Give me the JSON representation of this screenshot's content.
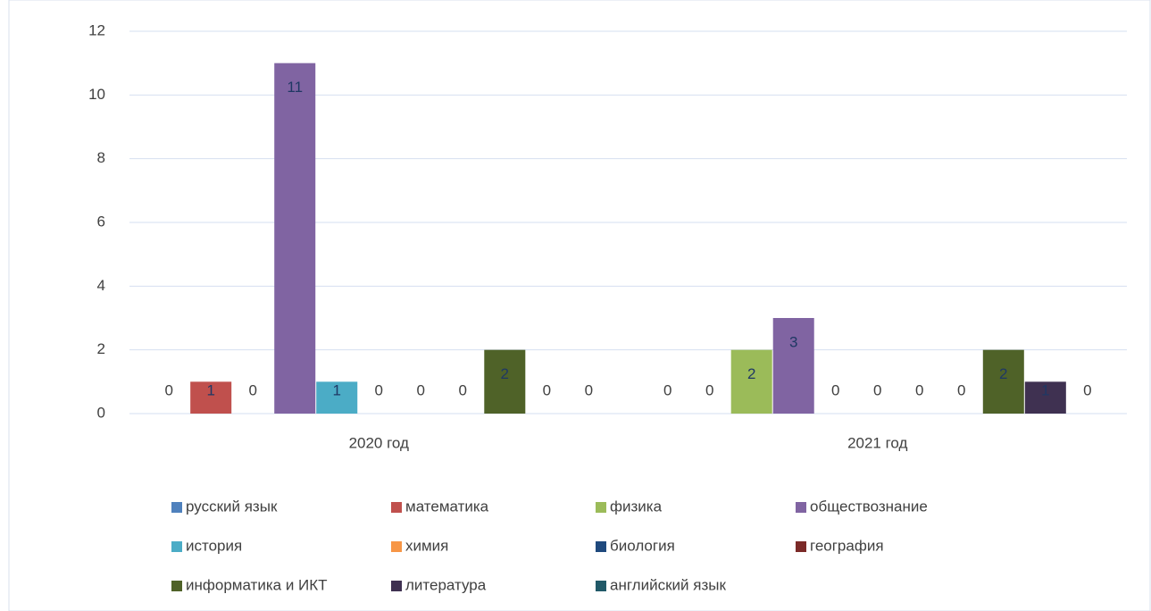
{
  "chart_data": {
    "type": "bar",
    "categories": [
      "2020 год",
      "2021 год"
    ],
    "series": [
      {
        "name": "русский язык",
        "color": "#4f81bd",
        "values": [
          0,
          0
        ]
      },
      {
        "name": "математика",
        "color": "#c0504d",
        "values": [
          1,
          0
        ]
      },
      {
        "name": "физика",
        "color": "#9bbb59",
        "values": [
          0,
          2
        ]
      },
      {
        "name": "обществознание",
        "color": "#8064a2",
        "values": [
          11,
          3
        ]
      },
      {
        "name": "история",
        "color": "#4bacc6",
        "values": [
          1,
          0
        ]
      },
      {
        "name": "химия",
        "color": "#f79646",
        "values": [
          0,
          0
        ]
      },
      {
        "name": "биология",
        "color": "#1f497d",
        "values": [
          0,
          0
        ]
      },
      {
        "name": "география",
        "color": "#7b2a28",
        "values": [
          0,
          0
        ]
      },
      {
        "name": "информатика и ИКТ",
        "color": "#4f6228",
        "values": [
          2,
          2
        ]
      },
      {
        "name": "литература",
        "color": "#3f3151",
        "values": [
          0,
          1
        ]
      },
      {
        "name": "английский язык",
        "color": "#215968",
        "values": [
          0,
          0
        ]
      }
    ],
    "ylim": [
      0,
      12
    ],
    "yticks": [
      0,
      2,
      4,
      6,
      8,
      10,
      12
    ],
    "grid": true,
    "legend": "bottom"
  }
}
